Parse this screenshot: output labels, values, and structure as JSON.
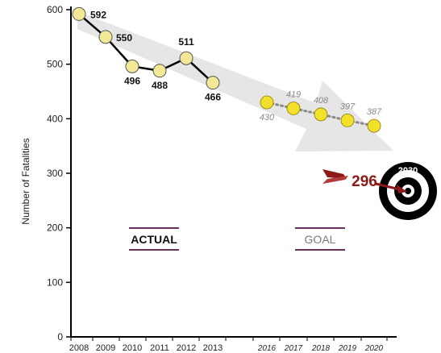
{
  "chart_data": {
    "type": "line",
    "ylabel": "Number of Fatalities",
    "ylim": [
      0,
      600
    ],
    "yticks": [
      0,
      100,
      200,
      300,
      400,
      500,
      600
    ],
    "series": [
      {
        "name": "ACTUAL",
        "style": "solid",
        "points": [
          {
            "x": "2008",
            "y": 592,
            "label": "592"
          },
          {
            "x": "2009",
            "y": 550,
            "label": "550"
          },
          {
            "x": "2010",
            "y": 496,
            "label": "496"
          },
          {
            "x": "2011",
            "y": 488,
            "label": "488"
          },
          {
            "x": "2012",
            "y": 511,
            "label": "511"
          },
          {
            "x": "2013",
            "y": 466,
            "label": "466"
          }
        ]
      },
      {
        "name": "GOAL",
        "style": "dotted",
        "points": [
          {
            "x": "2016",
            "y": 430,
            "label": "430"
          },
          {
            "x": "2017",
            "y": 419,
            "label": "419"
          },
          {
            "x": "2018",
            "y": 408,
            "label": "408"
          },
          {
            "x": "2019",
            "y": 397,
            "label": "397"
          },
          {
            "x": "2020",
            "y": 387,
            "label": "387"
          }
        ]
      }
    ],
    "target": {
      "year": "2030",
      "value": 296,
      "label": "296"
    },
    "colors": {
      "marker_fill_actual": "#f2e896",
      "marker_fill_goal": "#f3e02a",
      "trend_arrow": "#e0e0e0",
      "legend_rule": "#6b2f5e",
      "target_text": "#8b1a1a",
      "bullseye": "#000000"
    },
    "legend": {
      "actual_label": "ACTUAL",
      "goal_label": "GOAL"
    }
  }
}
